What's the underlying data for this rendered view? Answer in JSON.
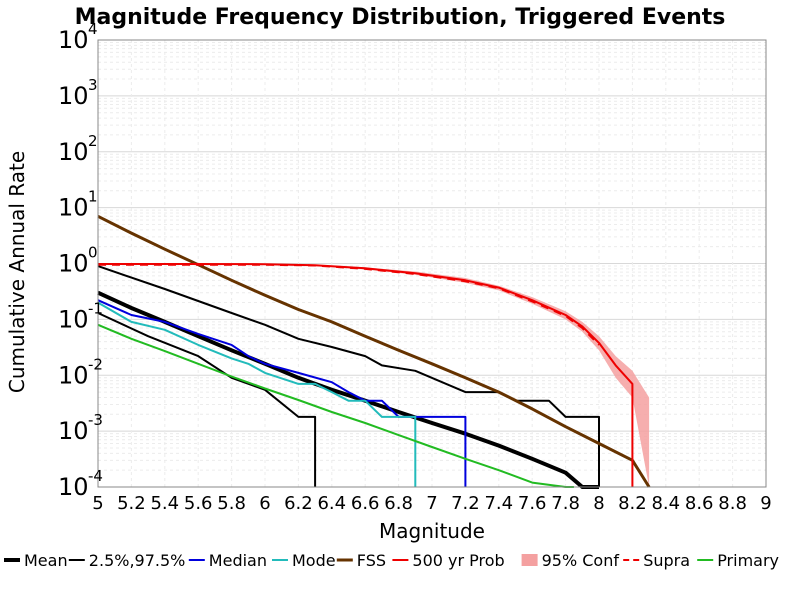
{
  "chart_data": {
    "type": "line",
    "title": "Magnitude Frequency Distribution, Triggered Events",
    "xlabel": "Magnitude",
    "ylabel": "Cumulative Annual Rate",
    "xlim": [
      5,
      9
    ],
    "ylim": [
      0.0001,
      10000
    ],
    "yscale": "log",
    "grid": true,
    "legend_position": "bottom",
    "x_ticks": [
      "5",
      "5.2",
      "5.4",
      "5.6",
      "5.8",
      "6",
      "6.2",
      "6.4",
      "6.6",
      "6.8",
      "7",
      "7.2",
      "7.4",
      "7.6",
      "7.8",
      "8",
      "8.2",
      "8.4",
      "8.6",
      "8.8",
      "9"
    ],
    "y_ticks": [
      {
        "base": "10",
        "exp": "-4",
        "value": 0.0001
      },
      {
        "base": "10",
        "exp": "-3",
        "value": 0.001
      },
      {
        "base": "10",
        "exp": "-2",
        "value": 0.01
      },
      {
        "base": "10",
        "exp": "-1",
        "value": 0.1
      },
      {
        "base": "10",
        "exp": "0",
        "value": 1
      },
      {
        "base": "10",
        "exp": "1",
        "value": 10
      },
      {
        "base": "10",
        "exp": "2",
        "value": 100
      },
      {
        "base": "10",
        "exp": "3",
        "value": 1000
      },
      {
        "base": "10",
        "exp": "4",
        "value": 10000
      }
    ],
    "band": {
      "name": "95% Conf",
      "color": "#f4a0a0",
      "x": [
        5.0,
        5.5,
        6.0,
        6.3,
        6.6,
        6.9,
        7.2,
        7.4,
        7.6,
        7.8,
        7.9,
        8.0,
        8.1,
        8.2,
        8.3
      ],
      "upper": [
        1.0,
        1.0,
        1.0,
        0.95,
        0.85,
        0.72,
        0.55,
        0.4,
        0.25,
        0.14,
        0.09,
        0.05,
        0.022,
        0.012,
        0.004
      ],
      "lower": [
        0.95,
        0.95,
        0.95,
        0.9,
        0.78,
        0.63,
        0.45,
        0.33,
        0.19,
        0.1,
        0.06,
        0.028,
        0.009,
        0.004,
        0.0001
      ]
    },
    "series": [
      {
        "name": "Mean",
        "color": "#000000",
        "width": 4,
        "dash": "",
        "x": [
          5.0,
          5.2,
          5.4,
          5.6,
          5.8,
          6.0,
          6.2,
          6.4,
          6.6,
          6.8,
          7.0,
          7.2,
          7.4,
          7.6,
          7.8,
          7.9,
          8.0
        ],
        "y": [
          0.3,
          0.16,
          0.09,
          0.05,
          0.028,
          0.016,
          0.009,
          0.0055,
          0.0035,
          0.0022,
          0.0014,
          0.0009,
          0.00055,
          0.00032,
          0.00018,
          9e-05,
          0.0001
        ]
      },
      {
        "name": "2.5%,97.5%",
        "color": "#000000",
        "width": 2,
        "dash": "",
        "x": [
          5.0,
          5.4,
          5.8,
          6.0,
          6.2,
          6.4,
          6.6,
          6.7,
          6.9,
          7.2,
          7.4,
          7.5,
          7.7,
          7.8,
          7.9,
          8.0,
          8.0
        ],
        "y": [
          0.9,
          0.35,
          0.13,
          0.08,
          0.045,
          0.032,
          0.022,
          0.015,
          0.012,
          0.005,
          0.005,
          0.0035,
          0.0035,
          0.0018,
          0.0018,
          0.0018,
          0.0001
        ]
      },
      {
        "name": "2.5%,97.5%",
        "color": "#000000",
        "width": 2,
        "dash": "",
        "x": [
          5.0,
          5.3,
          5.6,
          5.8,
          6.0,
          6.2,
          6.3,
          6.3
        ],
        "y": [
          0.13,
          0.05,
          0.022,
          0.009,
          0.0055,
          0.0018,
          0.0018,
          0.0001
        ]
      },
      {
        "name": "Median",
        "color": "#0000dd",
        "width": 2,
        "dash": "",
        "x": [
          5.0,
          5.2,
          5.4,
          5.6,
          5.8,
          5.9,
          6.0,
          6.2,
          6.4,
          6.5,
          6.6,
          6.7,
          6.8,
          6.9,
          7.0,
          7.2,
          7.2
        ],
        "y": [
          0.22,
          0.12,
          0.09,
          0.055,
          0.035,
          0.022,
          0.016,
          0.011,
          0.0075,
          0.005,
          0.0035,
          0.0035,
          0.0018,
          0.0018,
          0.0018,
          0.0018,
          0.0001
        ]
      },
      {
        "name": "Mode",
        "color": "#22bbbb",
        "width": 2,
        "dash": "",
        "x": [
          5.0,
          5.2,
          5.4,
          5.6,
          5.8,
          5.9,
          6.0,
          6.2,
          6.3,
          6.4,
          6.5,
          6.6,
          6.7,
          6.8,
          6.9,
          6.9
        ],
        "y": [
          0.2,
          0.09,
          0.065,
          0.035,
          0.02,
          0.016,
          0.011,
          0.007,
          0.007,
          0.005,
          0.0035,
          0.0035,
          0.0018,
          0.0018,
          0.0018,
          0.0001
        ]
      },
      {
        "name": "FSS",
        "color": "#663300",
        "width": 3,
        "dash": "",
        "x": [
          5.0,
          5.2,
          5.4,
          5.6,
          5.8,
          6.0,
          6.2,
          6.4,
          6.6,
          6.8,
          7.0,
          7.2,
          7.4,
          7.6,
          7.8,
          8.0,
          8.2,
          8.3
        ],
        "y": [
          7.0,
          3.5,
          1.8,
          0.95,
          0.5,
          0.27,
          0.15,
          0.09,
          0.05,
          0.028,
          0.016,
          0.009,
          0.005,
          0.0025,
          0.0012,
          0.0006,
          0.0003,
          0.0001
        ]
      },
      {
        "name": "500 yr Prob",
        "color": "#ee0000",
        "width": 2,
        "dash": "",
        "x": [
          5.0,
          5.5,
          6.0,
          6.3,
          6.6,
          6.9,
          7.2,
          7.4,
          7.6,
          7.8,
          7.9,
          8.0,
          8.1,
          8.2,
          8.2
        ],
        "y": [
          0.98,
          0.98,
          0.97,
          0.93,
          0.82,
          0.67,
          0.5,
          0.37,
          0.22,
          0.12,
          0.075,
          0.038,
          0.015,
          0.007,
          0.0001
        ]
      },
      {
        "name": "Supra",
        "color": "#ee0000",
        "width": 2,
        "dash": "8,6",
        "x": [
          5.0,
          5.5,
          6.0,
          6.3,
          6.6,
          6.9,
          7.2,
          7.4,
          7.6,
          7.8,
          7.9,
          8.0
        ],
        "y": [
          0.95,
          0.95,
          0.95,
          0.92,
          0.8,
          0.65,
          0.48,
          0.36,
          0.21,
          0.115,
          0.07,
          0.035
        ]
      },
      {
        "name": "Primary",
        "color": "#22bb22",
        "width": 2,
        "dash": "",
        "x": [
          5.0,
          5.2,
          5.4,
          5.6,
          5.8,
          6.0,
          6.2,
          6.4,
          6.6,
          6.8,
          7.0,
          7.2,
          7.4,
          7.6,
          7.8,
          7.85
        ],
        "y": [
          0.08,
          0.045,
          0.027,
          0.016,
          0.0095,
          0.0058,
          0.0036,
          0.0022,
          0.0014,
          0.00085,
          0.00052,
          0.00032,
          0.0002,
          0.00012,
          7e-05,
          4e-05
        ]
      }
    ],
    "legend": [
      {
        "label": "Mean",
        "color": "#000000",
        "width": 4,
        "kind": "line"
      },
      {
        "label": "2.5%,97.5%",
        "color": "#000000",
        "width": 2,
        "kind": "line"
      },
      {
        "label": "Median",
        "color": "#0000dd",
        "width": 2,
        "kind": "line"
      },
      {
        "label": "Mode",
        "color": "#22bbbb",
        "width": 2,
        "kind": "line"
      },
      {
        "label": "FSS",
        "color": "#663300",
        "width": 3,
        "kind": "line"
      },
      {
        "label": "500 yr Prob",
        "color": "#ee0000",
        "width": 2,
        "kind": "line"
      },
      {
        "label": "95% Conf",
        "color": "#f4a0a0",
        "width": 8,
        "kind": "band"
      },
      {
        "label": "Supra",
        "color": "#ee0000",
        "width": 2,
        "kind": "dash"
      },
      {
        "label": "Primary",
        "color": "#22bb22",
        "width": 2,
        "kind": "line"
      }
    ]
  }
}
